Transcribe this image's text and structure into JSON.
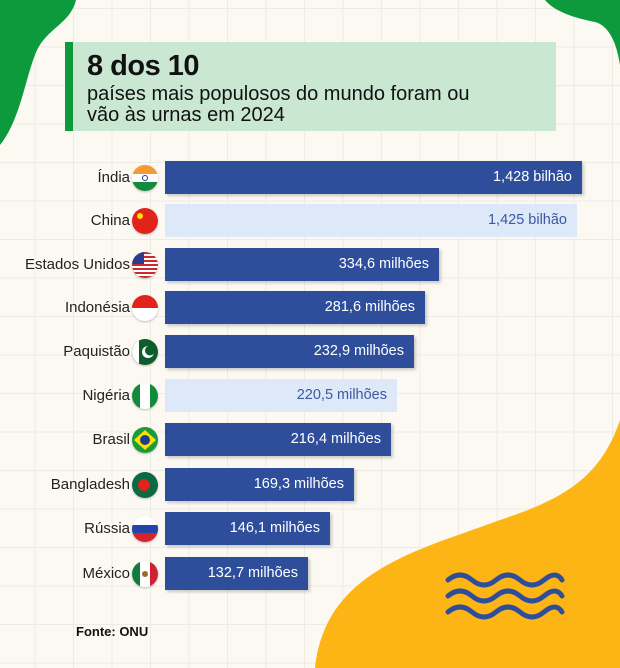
{
  "title": "8 dos 10",
  "subtitle_line1": "países mais populosos do mundo foram ou",
  "subtitle_line2": "vão às urnas em 2024",
  "source": "Fonte: ONU",
  "colors": {
    "bar": "#2e4e9c",
    "bar_muted": "#dde9f8",
    "accent_green": "#0c9a3c",
    "accent_yellow": "#fdb515",
    "title_bg": "#c9e7d1"
  },
  "chart_data": {
    "type": "bar",
    "orientation": "horizontal",
    "title": "8 dos 10",
    "categories": [
      "Índia",
      "China",
      "Estados Unidos",
      "Indonésia",
      "Paquistão",
      "Nigéria",
      "Brasil",
      "Bangladesh",
      "Rússia",
      "México"
    ],
    "values": [
      1428,
      1425,
      334.6,
      281.6,
      232.9,
      220.5,
      216.4,
      169.3,
      146.1,
      132.7
    ],
    "unit": "milhões",
    "data_labels": [
      "1,428 bilhão",
      "1,425 bilhão",
      "334,6 milhões",
      "281,6 milhões",
      "232,9 milhões",
      "220,5 milhões",
      "216,4 milhões",
      "169,3 milhões",
      "146,1 milhões",
      "132,7 milhões"
    ],
    "muted": [
      false,
      true,
      false,
      false,
      false,
      true,
      false,
      false,
      false,
      false
    ],
    "flags": [
      "india-flag",
      "china-flag",
      "usa-flag",
      "indonesia-flag",
      "pakistan-flag",
      "nigeria-flag",
      "brazil-flag",
      "bangladesh-flag",
      "russia-flag",
      "mexico-flag"
    ],
    "grid": true,
    "legend": "none"
  }
}
